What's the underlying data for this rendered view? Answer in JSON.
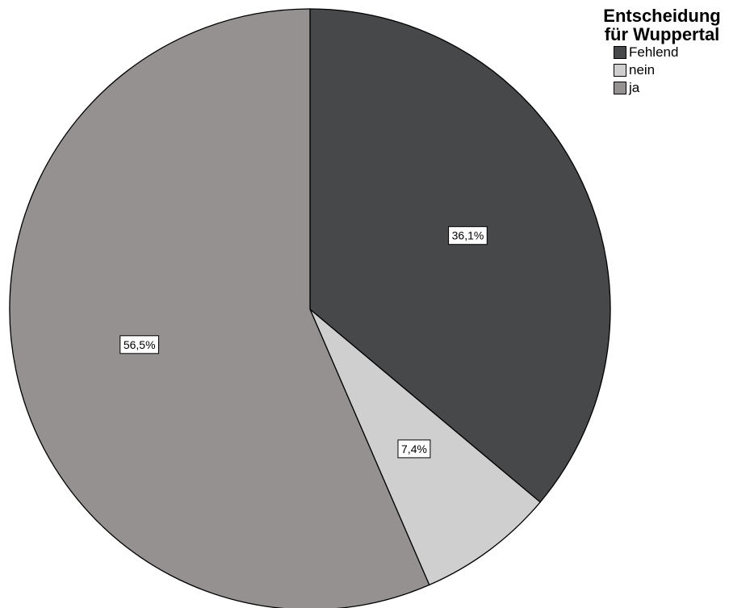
{
  "chart_data": {
    "type": "pie",
    "legend_title": "Entscheidung für Wuppertal",
    "legend_title_lines": [
      "Entscheidung",
      "für Wuppertal"
    ],
    "slices": [
      {
        "name": "Fehlend",
        "value": 36.1,
        "label": "36,1%",
        "color": "#47484a"
      },
      {
        "name": "nein",
        "value": 7.4,
        "label": "7,4%",
        "color": "#cfcfcf"
      },
      {
        "name": "ja",
        "value": 56.5,
        "label": "56,5%",
        "color": "#959190"
      }
    ],
    "start": "12 o'clock",
    "direction": "clockwise",
    "legend_position": "top-right"
  }
}
